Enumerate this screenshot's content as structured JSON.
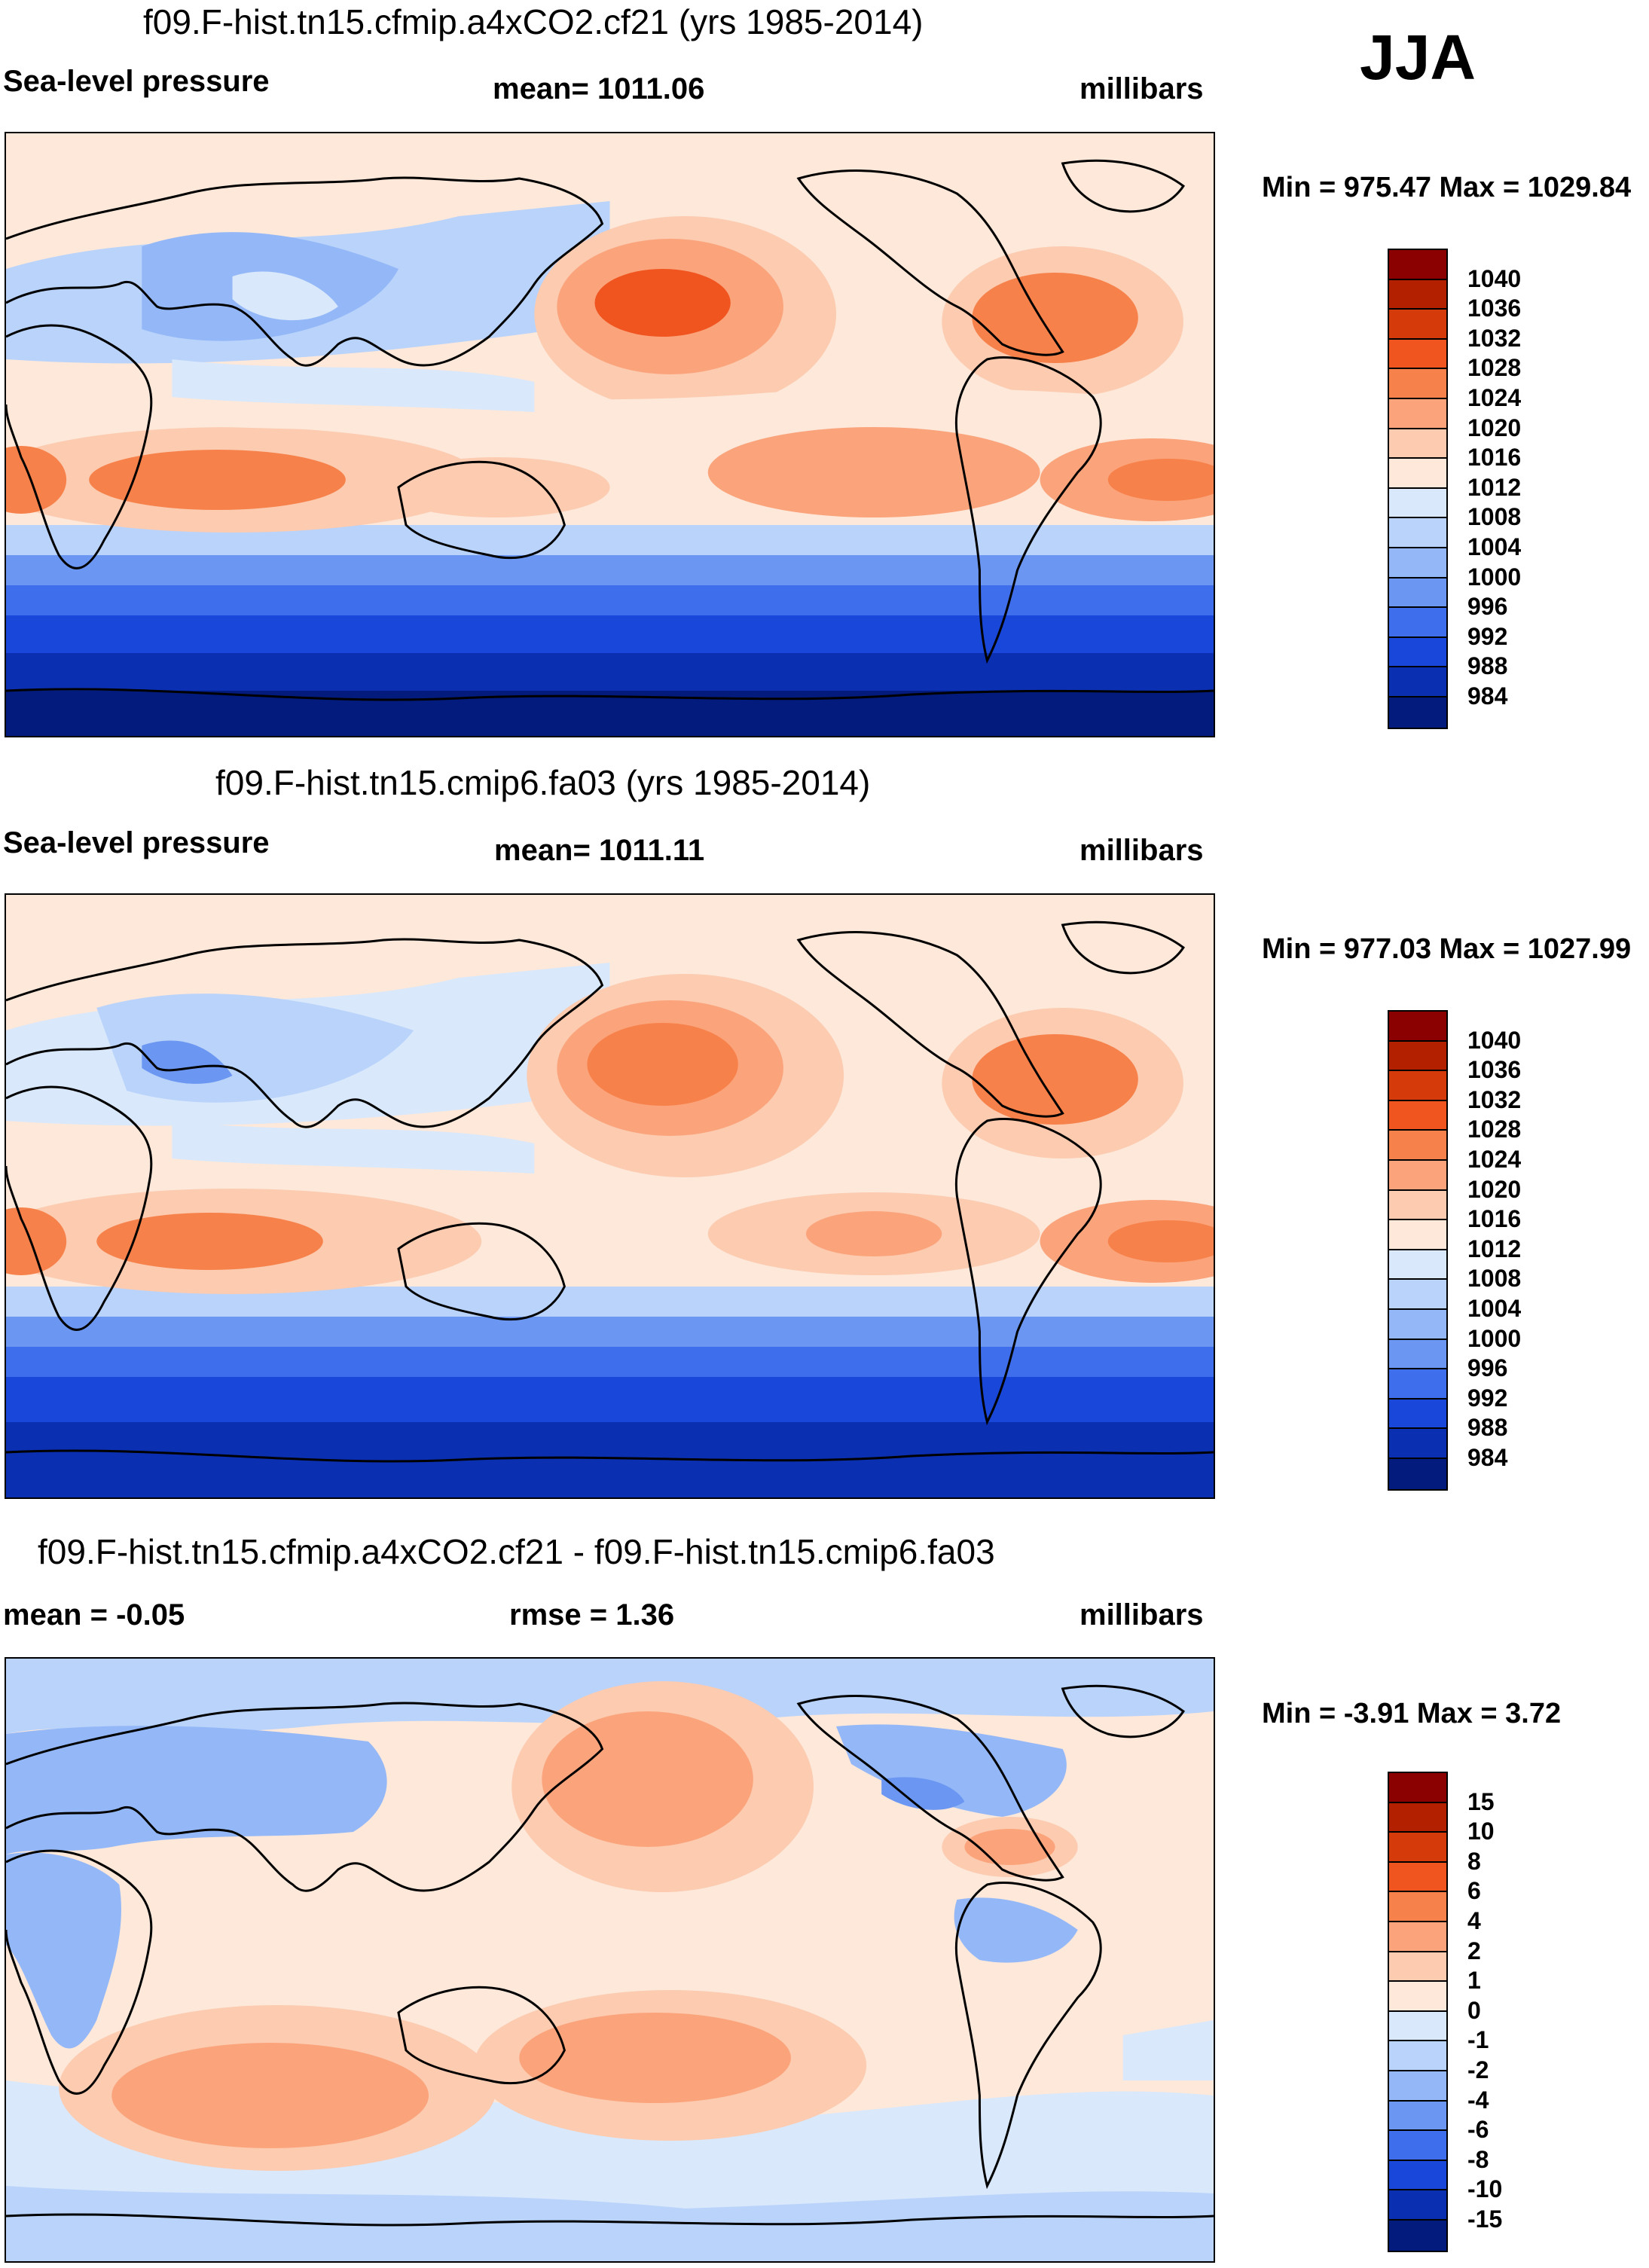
{
  "season": "JJA",
  "palettes": {
    "absolute": [
      "#8b0000",
      "#b22000",
      "#d43a0a",
      "#f0541f",
      "#f7814a",
      "#fba47c",
      "#fccbb0",
      "#fde8da",
      "#d9e8fb",
      "#b9d3fb",
      "#94b8f7",
      "#6b97f2",
      "#3f6eec",
      "#1847d9",
      "#0a2fb0",
      "#031b7c"
    ],
    "difference": [
      "#8b0000",
      "#b22000",
      "#d43a0a",
      "#f0541f",
      "#f7814a",
      "#fba47c",
      "#fccbb0",
      "#fde8da",
      "#d9e8fb",
      "#b9d3fb",
      "#94b8f7",
      "#6b97f2",
      "#3f6eec",
      "#1847d9",
      "#0a2fb0",
      "#031b7c"
    ]
  },
  "panels": [
    {
      "title": "f09.F-hist.tn15.cfmip.a4xCO2.cf21 (yrs 1985-2014)",
      "left": "Sea-level pressure",
      "center": "mean= 1011.06",
      "right": "millibars",
      "minmax": "Min = 975.47 Max = 1029.84",
      "levels": [
        "1040",
        "1036",
        "1032",
        "1028",
        "1024",
        "1020",
        "1016",
        "1012",
        "1008",
        "1004",
        "1000",
        "996",
        "992",
        "988",
        "984"
      ],
      "kind": "absolute"
    },
    {
      "title": "f09.F-hist.tn15.cmip6.fa03 (yrs 1985-2014)",
      "left": "Sea-level pressure",
      "center": "mean= 1011.11",
      "right": "millibars",
      "minmax": "Min = 977.03 Max = 1027.99",
      "levels": [
        "1040",
        "1036",
        "1032",
        "1028",
        "1024",
        "1020",
        "1016",
        "1012",
        "1008",
        "1004",
        "1000",
        "996",
        "992",
        "988",
        "984"
      ],
      "kind": "absolute"
    },
    {
      "title": "f09.F-hist.tn15.cfmip.a4xCO2.cf21 - f09.F-hist.tn15.cmip6.fa03",
      "left": "mean =  -0.05",
      "center": "rmse =   1.36",
      "right": "millibars",
      "minmax": "Min =  -3.91 Max =   3.72",
      "levels": [
        "15",
        "10",
        "8",
        "6",
        "4",
        "2",
        "1",
        "0",
        "-1",
        "-2",
        "-4",
        "-6",
        "-8",
        "-10",
        "-15"
      ],
      "kind": "difference"
    }
  ]
}
